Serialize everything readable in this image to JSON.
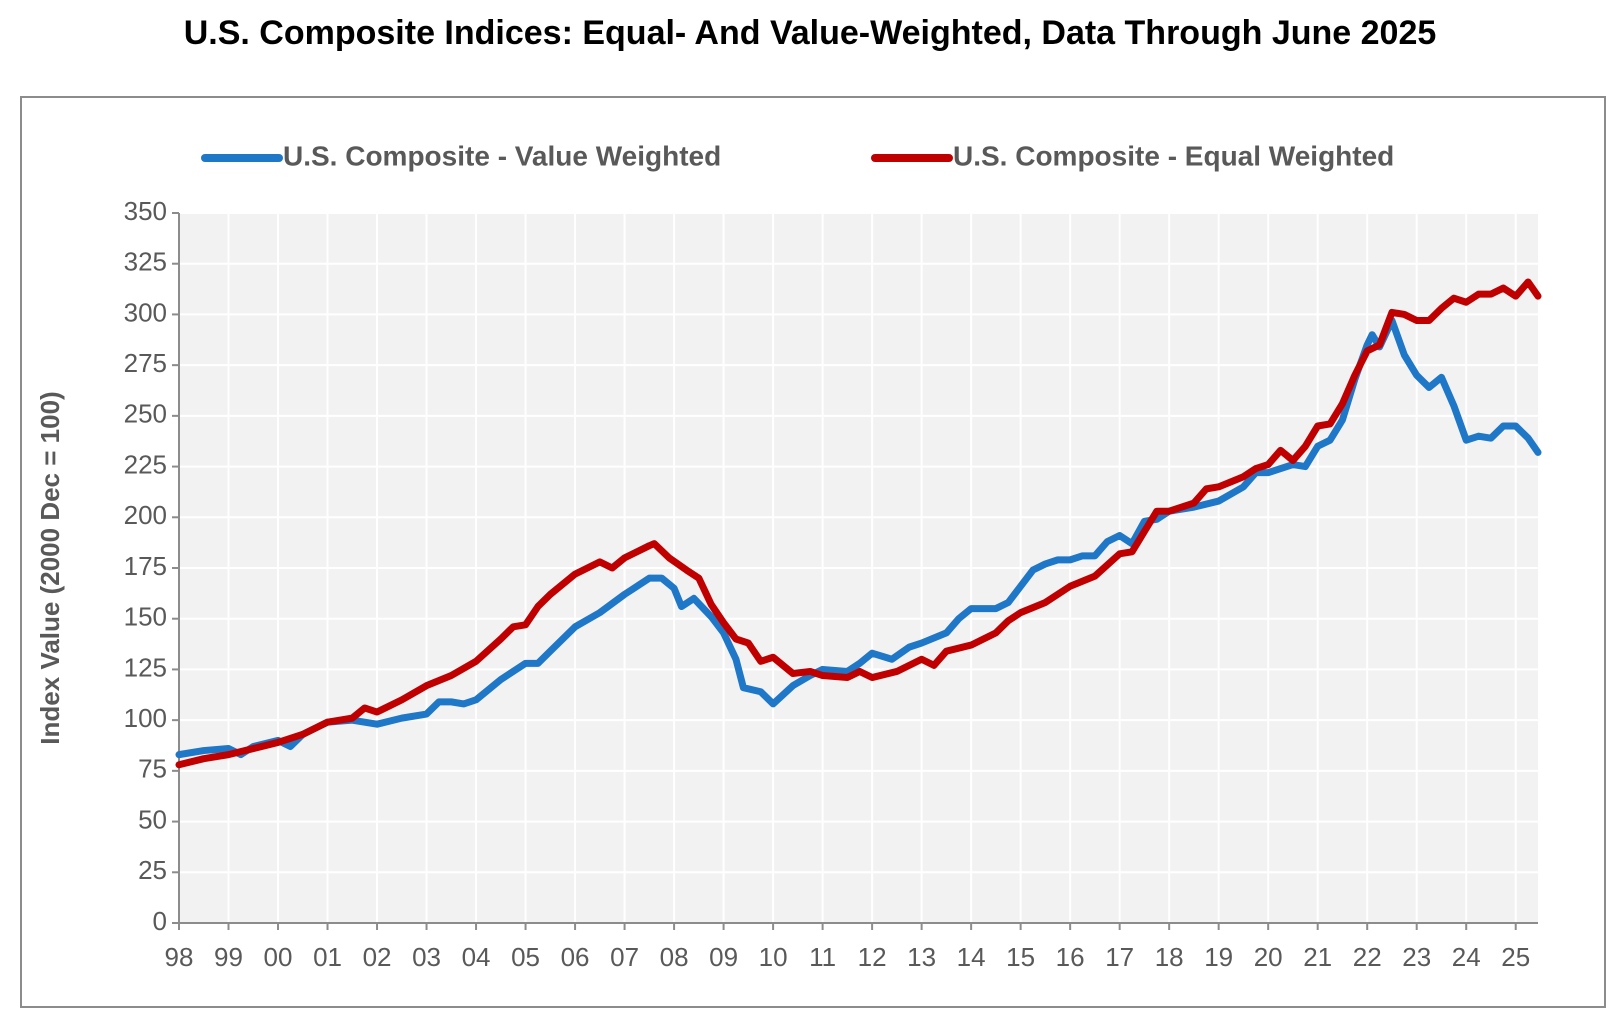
{
  "chart_data": {
    "type": "line",
    "title": "U.S. Composite Indices: Equal- And Value-Weighted, Data Through June 2025",
    "y_label": "Index Value (2000 Dec = 100)",
    "xlim": [
      1998,
      2025.45
    ],
    "ylim": [
      0,
      350
    ],
    "xticks": [
      {
        "value": 1998,
        "label": "98"
      },
      {
        "value": 1999,
        "label": "99"
      },
      {
        "value": 2000,
        "label": "00"
      },
      {
        "value": 2001,
        "label": "01"
      },
      {
        "value": 2002,
        "label": "02"
      },
      {
        "value": 2003,
        "label": "03"
      },
      {
        "value": 2004,
        "label": "04"
      },
      {
        "value": 2005,
        "label": "05"
      },
      {
        "value": 2006,
        "label": "06"
      },
      {
        "value": 2007,
        "label": "07"
      },
      {
        "value": 2008,
        "label": "08"
      },
      {
        "value": 2009,
        "label": "09"
      },
      {
        "value": 2010,
        "label": "10"
      },
      {
        "value": 2011,
        "label": "11"
      },
      {
        "value": 2012,
        "label": "12"
      },
      {
        "value": 2013,
        "label": "13"
      },
      {
        "value": 2014,
        "label": "14"
      },
      {
        "value": 2015,
        "label": "15"
      },
      {
        "value": 2016,
        "label": "16"
      },
      {
        "value": 2017,
        "label": "17"
      },
      {
        "value": 2018,
        "label": "18"
      },
      {
        "value": 2019,
        "label": "19"
      },
      {
        "value": 2020,
        "label": "20"
      },
      {
        "value": 2021,
        "label": "21"
      },
      {
        "value": 2022,
        "label": "22"
      },
      {
        "value": 2023,
        "label": "23"
      },
      {
        "value": 2024,
        "label": "24"
      },
      {
        "value": 2025,
        "label": "25"
      }
    ],
    "yticks": [
      0,
      25,
      50,
      75,
      100,
      125,
      150,
      175,
      200,
      225,
      250,
      275,
      300,
      325,
      350
    ],
    "grid": true,
    "legend": "top",
    "series": [
      {
        "name": "U.S. Composite - Value Weighted",
        "color": "#1f77c8",
        "x": [
          1998,
          1998.5,
          1999,
          1999.25,
          1999.5,
          2000,
          2000.25,
          2000.5,
          2001,
          2001.5,
          2002,
          2002.5,
          2003,
          2003.25,
          2003.5,
          2003.75,
          2004,
          2004.5,
          2005,
          2005.25,
          2005.5,
          2006,
          2006.5,
          2007,
          2007.5,
          2007.75,
          2008,
          2008.15,
          2008.4,
          2008.75,
          2009,
          2009.25,
          2009.4,
          2009.75,
          2010,
          2010.4,
          2010.75,
          2011,
          2011.5,
          2011.75,
          2012,
          2012.4,
          2012.75,
          2013,
          2013.5,
          2013.75,
          2014,
          2014.5,
          2014.75,
          2015,
          2015.25,
          2015.5,
          2015.75,
          2016,
          2016.25,
          2016.5,
          2016.75,
          2017,
          2017.25,
          2017.5,
          2017.75,
          2018,
          2018.5,
          2019,
          2019.5,
          2019.75,
          2020,
          2020.5,
          2020.75,
          2021,
          2021.25,
          2021.5,
          2021.75,
          2022,
          2022.1,
          2022.25,
          2022.5,
          2022.75,
          2023,
          2023.25,
          2023.5,
          2023.75,
          2024,
          2024.25,
          2024.5,
          2024.75,
          2025,
          2025.25,
          2025.45
        ],
        "values": [
          83,
          85,
          86,
          83,
          87,
          90,
          87,
          93,
          99,
          100,
          98,
          101,
          103,
          109,
          109,
          108,
          110,
          120,
          128,
          128,
          134,
          146,
          153,
          162,
          170,
          170,
          165,
          156,
          160,
          151,
          143,
          130,
          116,
          114,
          108,
          117,
          122,
          125,
          124,
          128,
          133,
          130,
          136,
          138,
          143,
          150,
          155,
          155,
          158,
          166,
          174,
          177,
          179,
          179,
          181,
          181,
          188,
          191,
          187,
          198,
          199,
          203,
          205,
          208,
          215,
          222,
          222,
          226,
          225,
          235,
          238,
          248,
          268,
          285,
          290,
          284,
          297,
          280,
          270,
          264,
          269,
          255,
          238,
          240,
          239,
          245,
          245,
          239,
          232
        ]
      },
      {
        "name": "U.S. Composite - Equal Weighted",
        "color": "#c00000",
        "x": [
          1998,
          1998.5,
          1999,
          1999.5,
          2000,
          2000.5,
          2001,
          2001.5,
          2001.75,
          2002,
          2002.5,
          2003,
          2003.5,
          2004,
          2004.5,
          2004.75,
          2005,
          2005.25,
          2005.5,
          2006,
          2006.5,
          2006.75,
          2007,
          2007.5,
          2007.6,
          2007.9,
          2008.25,
          2008.5,
          2008.75,
          2009,
          2009.25,
          2009.5,
          2009.75,
          2010,
          2010.4,
          2010.75,
          2011,
          2011.5,
          2011.75,
          2012,
          2012.5,
          2013,
          2013.25,
          2013.5,
          2014,
          2014.5,
          2014.75,
          2015,
          2015.5,
          2016,
          2016.5,
          2017,
          2017.25,
          2017.5,
          2017.75,
          2018,
          2018.5,
          2018.75,
          2019,
          2019.5,
          2019.75,
          2020,
          2020.25,
          2020.5,
          2020.75,
          2021,
          2021.25,
          2021.5,
          2021.75,
          2022,
          2022.25,
          2022.5,
          2022.75,
          2023,
          2023.25,
          2023.5,
          2023.75,
          2024,
          2024.25,
          2024.5,
          2024.75,
          2025,
          2025.25,
          2025.45
        ],
        "values": [
          78,
          81,
          83,
          86,
          89,
          93,
          99,
          101,
          106,
          104,
          110,
          117,
          122,
          129,
          140,
          146,
          147,
          156,
          162,
          172,
          178,
          175,
          180,
          186,
          187,
          180,
          174,
          170,
          157,
          148,
          140,
          138,
          129,
          131,
          123,
          124,
          122,
          121,
          124,
          121,
          124,
          130,
          127,
          134,
          137,
          143,
          149,
          153,
          158,
          166,
          171,
          182,
          183,
          193,
          203,
          203,
          207,
          214,
          215,
          220,
          224,
          226,
          233,
          228,
          235,
          245,
          246,
          256,
          270,
          282,
          285,
          301,
          300,
          297,
          297,
          303,
          308,
          306,
          310,
          310,
          313,
          309,
          316,
          309
        ]
      }
    ]
  }
}
